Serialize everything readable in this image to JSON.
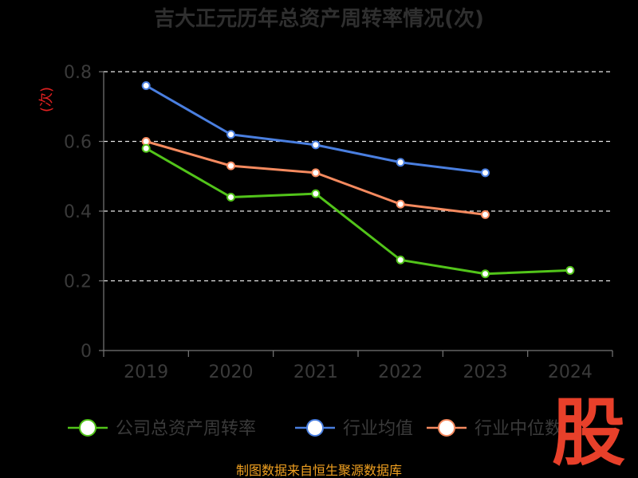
{
  "chart_data": {
    "type": "line",
    "title": "吉大正元历年总资产周转率情况(次)",
    "ylabel": "(次)",
    "xlabel": "",
    "categories": [
      "2019",
      "2020",
      "2021",
      "2022",
      "2023",
      "2024"
    ],
    "y_ticks": [
      "0",
      "0.2",
      "0.4",
      "0.6",
      "0.8"
    ],
    "ylim": [
      0,
      0.8
    ],
    "grid": true,
    "legend_position": "bottom",
    "series": [
      {
        "name": "公司总资产周转率",
        "color": "#52c41a",
        "values": [
          0.58,
          0.44,
          0.45,
          0.26,
          0.22,
          0.23
        ]
      },
      {
        "name": "行业均值",
        "color": "#4a7fe0",
        "values": [
          0.76,
          0.62,
          0.59,
          0.54,
          0.51,
          null
        ]
      },
      {
        "name": "行业中位数",
        "color": "#f58a5f",
        "values": [
          0.6,
          0.53,
          0.51,
          0.42,
          0.39,
          null
        ]
      }
    ]
  },
  "source_note": "制图数据来自恒生聚源数据库",
  "watermark": "股"
}
